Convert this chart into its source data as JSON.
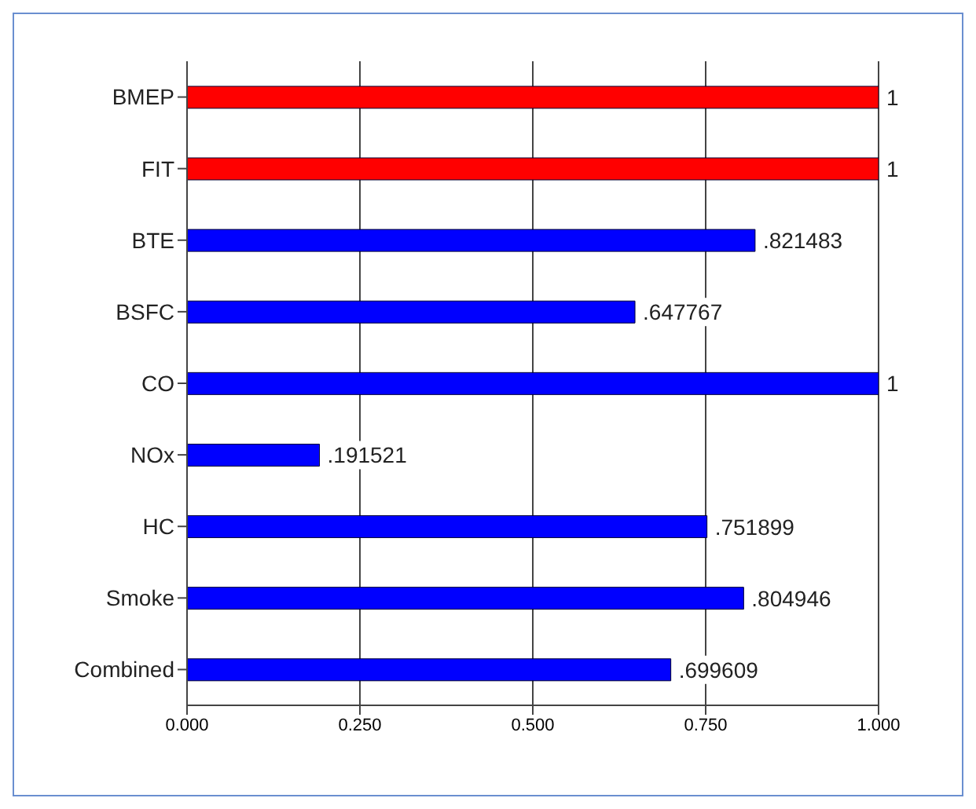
{
  "chart_data": {
    "type": "bar",
    "orientation": "horizontal",
    "categories": [
      "BMEP",
      "FIT",
      "BTE",
      "BSFC",
      "CO",
      "NOx",
      "HC",
      "Smoke",
      "Combined"
    ],
    "values": [
      1,
      1,
      0.821483,
      0.647767,
      1,
      0.191521,
      0.751899,
      0.804946,
      0.699609
    ],
    "colors": [
      "#ff0000",
      "#ff0000",
      "#0000ff",
      "#0000ff",
      "#0000ff",
      "#0000ff",
      "#0000ff",
      "#0000ff",
      "#0000ff"
    ],
    "value_labels": [
      "1",
      "1",
      ".821483",
      ".647767",
      "1",
      ".191521",
      ".751899",
      ".804946",
      ".699609"
    ],
    "xlim": [
      0,
      1
    ],
    "xticks": [
      {
        "value": 0,
        "label": "0.000"
      },
      {
        "value": 0.25,
        "label": "0.250"
      },
      {
        "value": 0.5,
        "label": "0.500"
      },
      {
        "value": 0.75,
        "label": "0.750"
      },
      {
        "value": 1,
        "label": "1.000"
      }
    ],
    "grid": "x"
  }
}
